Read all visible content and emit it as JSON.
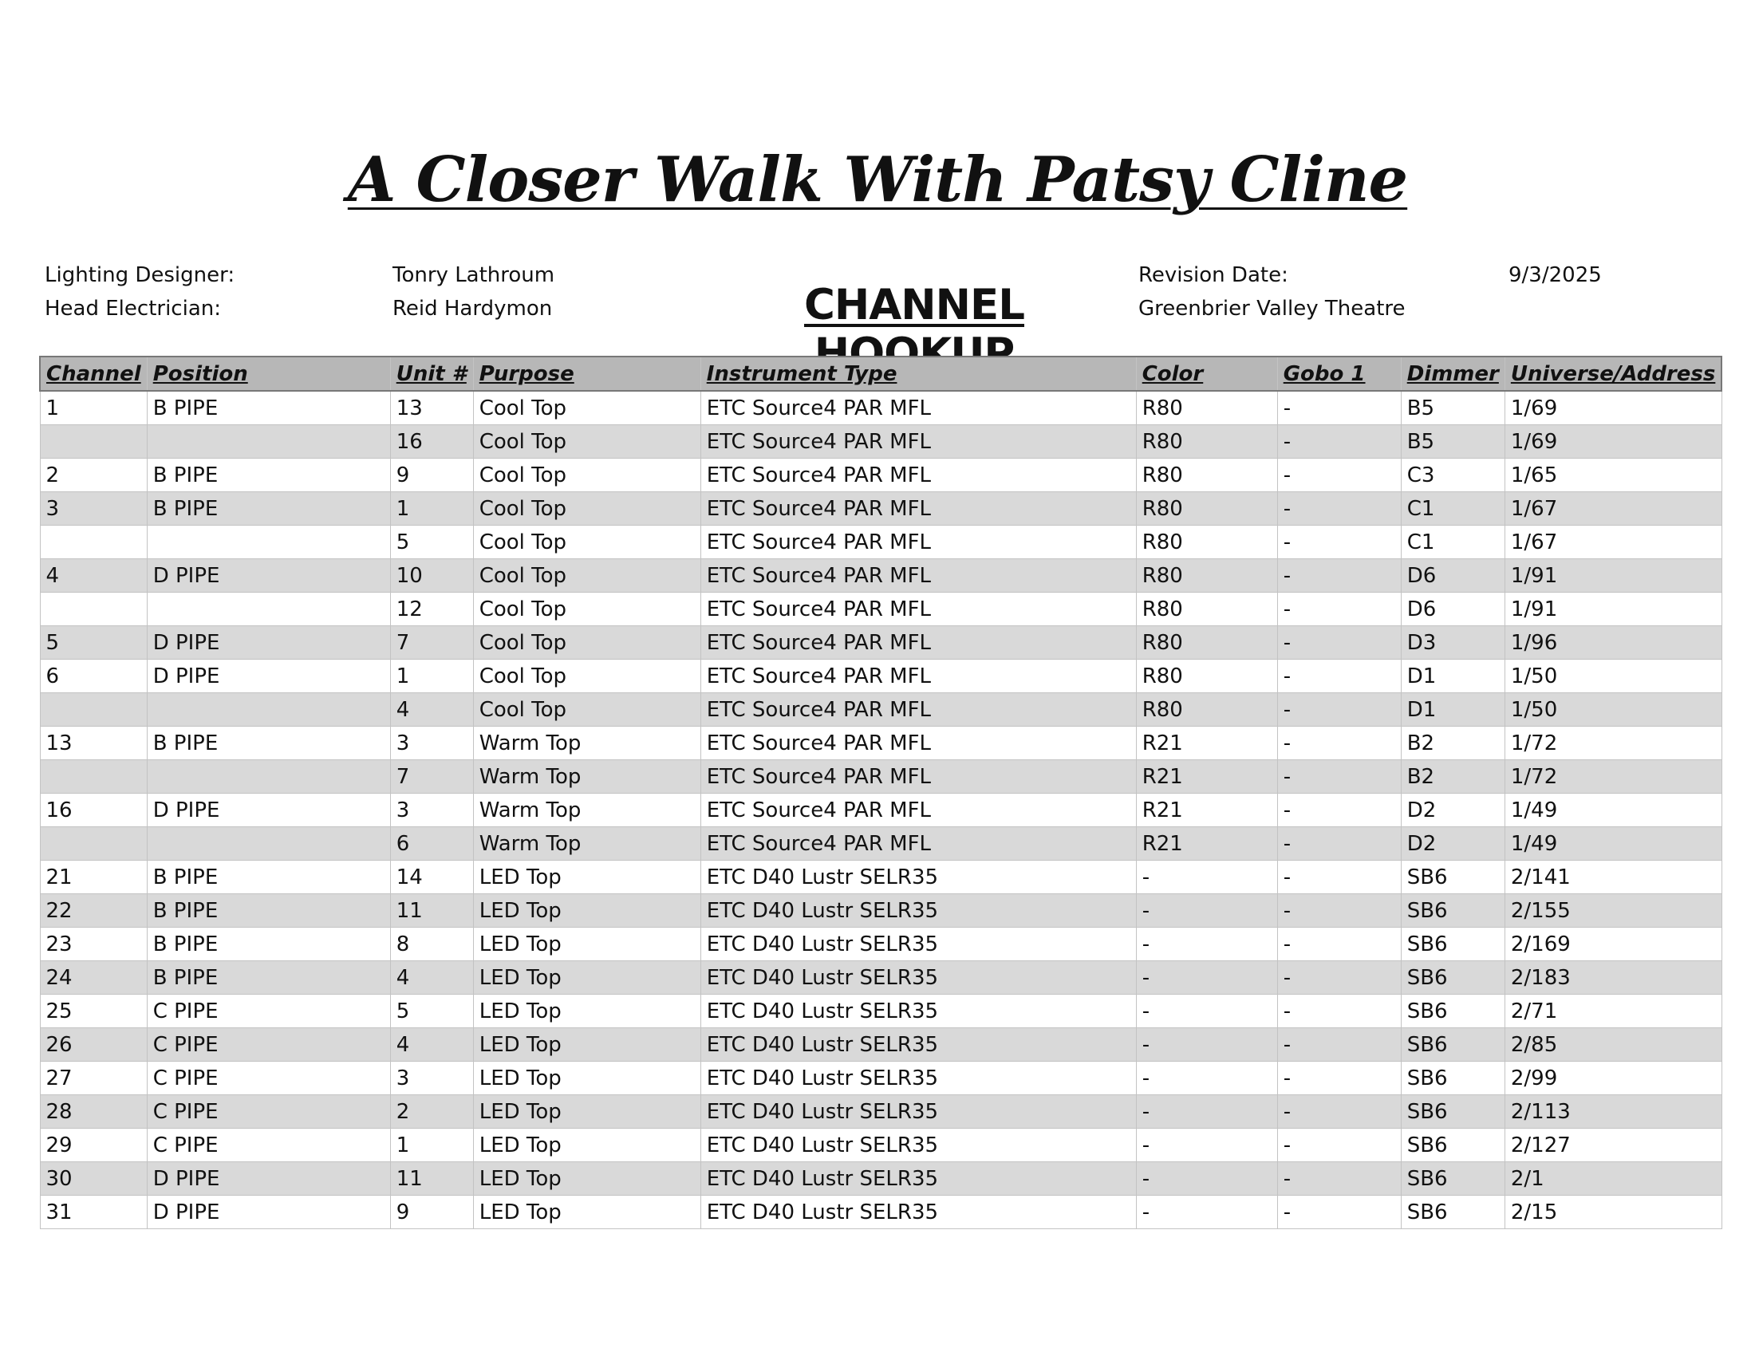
{
  "title": "A Closer Walk With Patsy Cline",
  "heading": "CHANNEL HOOKUP",
  "info": {
    "lighting_designer_label": "Lighting Designer:",
    "lighting_designer": "Tonry Lathroum",
    "head_electrician_label": "Head Electrician:",
    "head_electrician": "Reid Hardymon",
    "revision_date_label": "Revision Date:",
    "revision_date": "9/3/2025",
    "venue": "Greenbrier Valley Theatre"
  },
  "colors": {
    "header_bg": "#b7b7b7",
    "alt_row_bg": "#d9d9d9"
  },
  "columns": [
    "Channel",
    "Position",
    "Unit #",
    "Purpose",
    "Instrument Type",
    "Color",
    "Gobo 1",
    "Dimmer",
    "Universe/Address"
  ],
  "rows": [
    [
      "1",
      "B PIPE",
      "13",
      "Cool Top",
      "ETC Source4 PAR MFL",
      "R80",
      "-",
      "B5",
      "1/69"
    ],
    [
      "",
      "",
      "16",
      "Cool Top",
      "ETC Source4 PAR MFL",
      "R80",
      "-",
      "B5",
      "1/69"
    ],
    [
      "2",
      "B PIPE",
      "9",
      "Cool Top",
      "ETC Source4 PAR MFL",
      "R80",
      "-",
      "C3",
      "1/65"
    ],
    [
      "3",
      "B PIPE",
      "1",
      "Cool Top",
      "ETC Source4 PAR MFL",
      "R80",
      "-",
      "C1",
      "1/67"
    ],
    [
      "",
      "",
      "5",
      "Cool Top",
      "ETC Source4 PAR MFL",
      "R80",
      "-",
      "C1",
      "1/67"
    ],
    [
      "4",
      "D PIPE",
      "10",
      "Cool Top",
      "ETC Source4 PAR MFL",
      "R80",
      "-",
      "D6",
      "1/91"
    ],
    [
      "",
      "",
      "12",
      "Cool Top",
      "ETC Source4 PAR MFL",
      "R80",
      "-",
      "D6",
      "1/91"
    ],
    [
      "5",
      "D PIPE",
      "7",
      "Cool Top",
      "ETC Source4 PAR MFL",
      "R80",
      "-",
      "D3",
      "1/96"
    ],
    [
      "6",
      "D PIPE",
      "1",
      "Cool Top",
      "ETC Source4 PAR MFL",
      "R80",
      "-",
      "D1",
      "1/50"
    ],
    [
      "",
      "",
      "4",
      "Cool Top",
      "ETC Source4 PAR MFL",
      "R80",
      "-",
      "D1",
      "1/50"
    ],
    [
      "13",
      "B PIPE",
      "3",
      "Warm Top",
      "ETC Source4 PAR MFL",
      "R21",
      "-",
      "B2",
      "1/72"
    ],
    [
      "",
      "",
      "7",
      "Warm Top",
      "ETC Source4 PAR MFL",
      "R21",
      "-",
      "B2",
      "1/72"
    ],
    [
      "16",
      "D PIPE",
      "3",
      "Warm Top",
      "ETC Source4 PAR MFL",
      "R21",
      "-",
      "D2",
      "1/49"
    ],
    [
      "",
      "",
      "6",
      "Warm Top",
      "ETC Source4 PAR MFL",
      "R21",
      "-",
      "D2",
      "1/49"
    ],
    [
      "21",
      "B PIPE",
      "14",
      "LED Top",
      "ETC D40 Lustr SELR35",
      "-",
      "-",
      "SB6",
      "2/141"
    ],
    [
      "22",
      "B PIPE",
      "11",
      "LED Top",
      "ETC D40 Lustr SELR35",
      "-",
      "-",
      "SB6",
      "2/155"
    ],
    [
      "23",
      "B PIPE",
      "8",
      "LED Top",
      "ETC D40 Lustr SELR35",
      "-",
      "-",
      "SB6",
      "2/169"
    ],
    [
      "24",
      "B PIPE",
      "4",
      "LED Top",
      "ETC D40 Lustr SELR35",
      "-",
      "-",
      "SB6",
      "2/183"
    ],
    [
      "25",
      "C PIPE",
      "5",
      "LED Top",
      "ETC D40 Lustr SELR35",
      "-",
      "-",
      "SB6",
      "2/71"
    ],
    [
      "26",
      "C PIPE",
      "4",
      "LED Top",
      "ETC D40 Lustr SELR35",
      "-",
      "-",
      "SB6",
      "2/85"
    ],
    [
      "27",
      "C PIPE",
      "3",
      "LED Top",
      "ETC D40 Lustr SELR35",
      "-",
      "-",
      "SB6",
      "2/99"
    ],
    [
      "28",
      "C PIPE",
      "2",
      "LED Top",
      "ETC D40 Lustr SELR35",
      "-",
      "-",
      "SB6",
      "2/113"
    ],
    [
      "29",
      "C PIPE",
      "1",
      "LED Top",
      "ETC D40 Lustr SELR35",
      "-",
      "-",
      "SB6",
      "2/127"
    ],
    [
      "30",
      "D PIPE",
      "11",
      "LED Top",
      "ETC D40 Lustr SELR35",
      "-",
      "-",
      "SB6",
      "2/1"
    ],
    [
      "31",
      "D PIPE",
      "9",
      "LED Top",
      "ETC D40 Lustr SELR35",
      "-",
      "-",
      "SB6",
      "2/15"
    ]
  ]
}
